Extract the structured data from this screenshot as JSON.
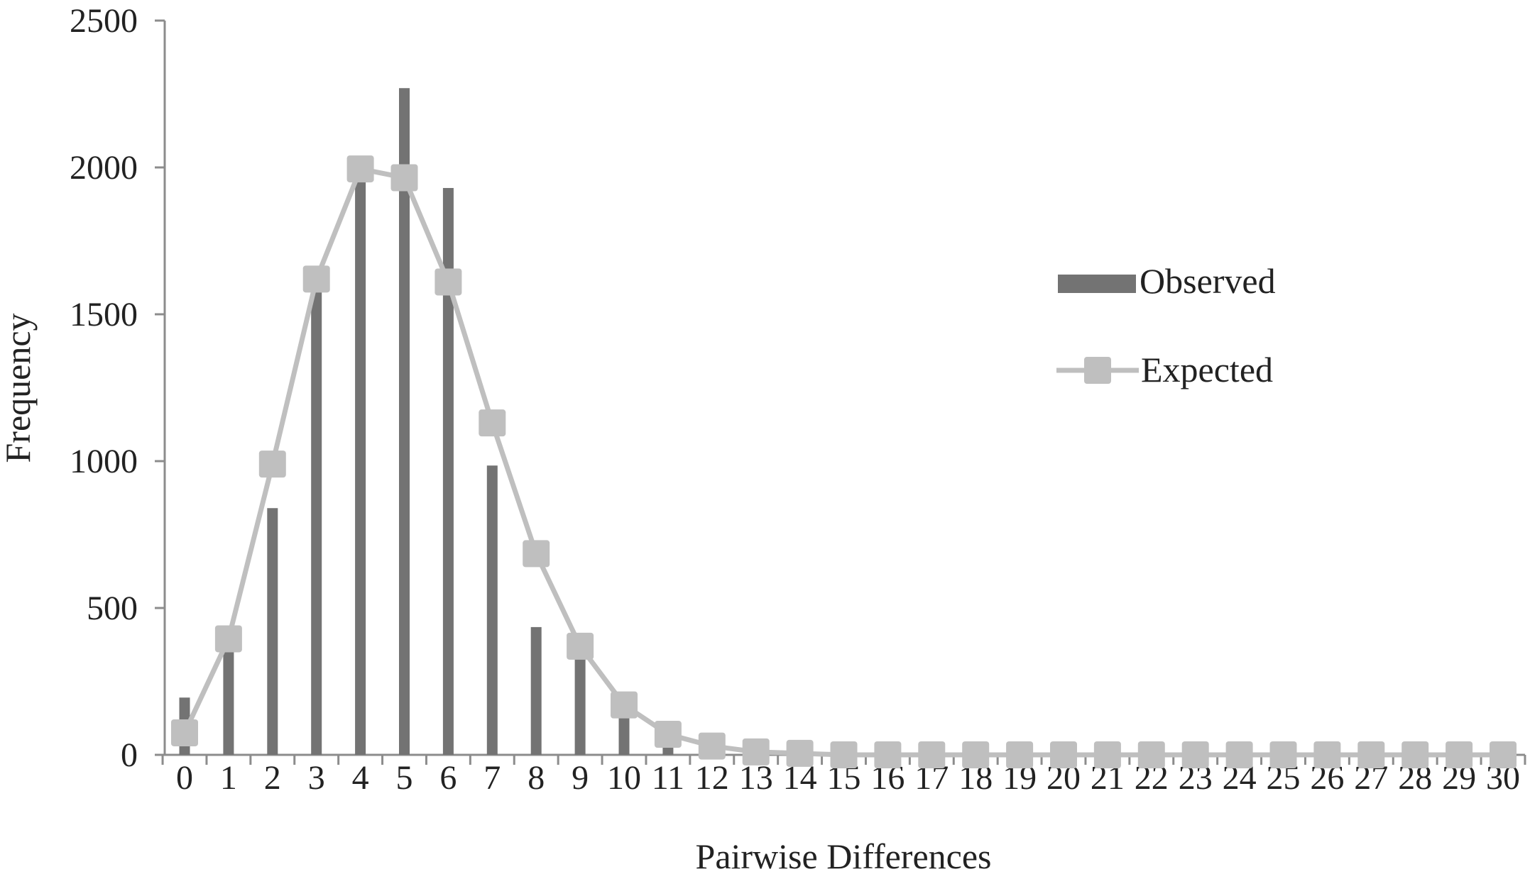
{
  "chart_data": {
    "type": "bar",
    "xlabel": "Pairwise Differences",
    "ylabel": "Frequency",
    "ylim": [
      0,
      2500
    ],
    "yticks": [
      0,
      500,
      1000,
      1500,
      2000,
      2500
    ],
    "categories": [
      "0",
      "1",
      "2",
      "3",
      "4",
      "5",
      "6",
      "7",
      "8",
      "9",
      "10",
      "11",
      "12",
      "13",
      "14",
      "15",
      "16",
      "17",
      "18",
      "19",
      "20",
      "21",
      "22",
      "23",
      "24",
      "25",
      "26",
      "27",
      "28",
      "29",
      "30"
    ],
    "series": [
      {
        "name": "Observed",
        "kind": "bar",
        "color": "#737373",
        "values": [
          195,
          360,
          840,
          1590,
          1960,
          2270,
          1930,
          985,
          435,
          330,
          140,
          35,
          5,
          0,
          0,
          0,
          0,
          0,
          0,
          0,
          0,
          0,
          0,
          0,
          0,
          0,
          0,
          0,
          0,
          0,
          0
        ]
      },
      {
        "name": "Expected",
        "kind": "line",
        "color": "#bfbfbf",
        "values": [
          75,
          395,
          990,
          1620,
          1995,
          1965,
          1610,
          1130,
          685,
          370,
          170,
          70,
          30,
          10,
          5,
          0,
          0,
          0,
          0,
          0,
          0,
          0,
          0,
          0,
          0,
          0,
          0,
          0,
          0,
          0,
          0
        ]
      }
    ],
    "grid": false,
    "legend_position": "right"
  }
}
